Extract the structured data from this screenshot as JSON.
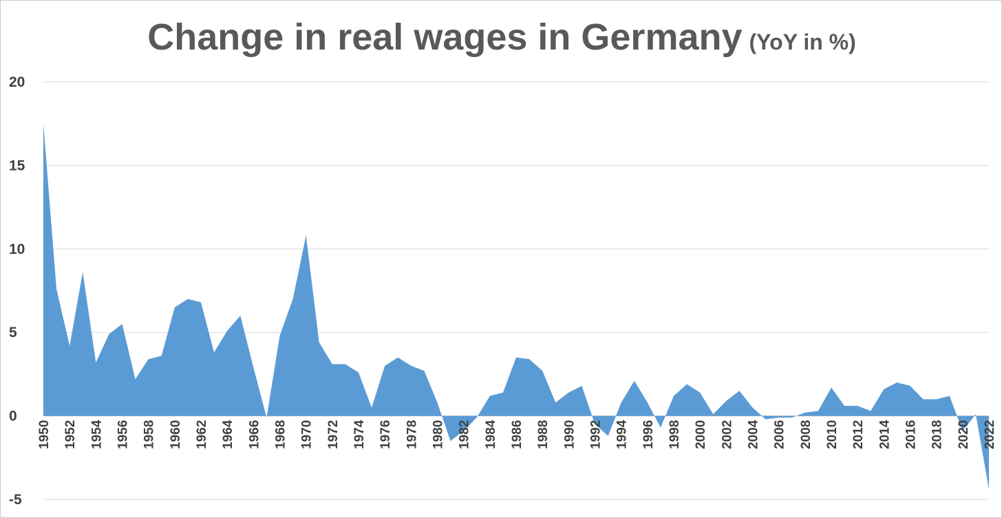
{
  "chart_data": {
    "type": "area",
    "title": "Change in real wages in Germany",
    "subtitle": "(YoY in %)",
    "xlabel": "",
    "ylabel": "",
    "ylim": [
      -5,
      20
    ],
    "yticks": [
      20,
      15,
      10,
      5,
      0,
      -5
    ],
    "grid": true,
    "legend": "none",
    "color": "#5b9bd5",
    "x": [
      1950,
      1951,
      1952,
      1953,
      1954,
      1955,
      1956,
      1957,
      1958,
      1959,
      1960,
      1961,
      1962,
      1963,
      1964,
      1965,
      1966,
      1967,
      1968,
      1969,
      1970,
      1971,
      1972,
      1973,
      1974,
      1975,
      1976,
      1977,
      1978,
      1979,
      1980,
      1981,
      1982,
      1983,
      1984,
      1985,
      1986,
      1987,
      1988,
      1989,
      1990,
      1991,
      1992,
      1993,
      1994,
      1995,
      1996,
      1997,
      1998,
      1999,
      2000,
      2001,
      2002,
      2003,
      2004,
      2005,
      2006,
      2007,
      2008,
      2009,
      2010,
      2011,
      2012,
      2013,
      2014,
      2015,
      2016,
      2017,
      2018,
      2019,
      2020,
      2021,
      2022
    ],
    "xticks": [
      1950,
      1952,
      1954,
      1956,
      1958,
      1960,
      1962,
      1964,
      1966,
      1968,
      1970,
      1972,
      1974,
      1976,
      1978,
      1980,
      1982,
      1984,
      1986,
      1988,
      1990,
      1992,
      1994,
      1996,
      1998,
      2000,
      2002,
      2004,
      2006,
      2008,
      2010,
      2012,
      2014,
      2016,
      2018,
      2020,
      2022
    ],
    "series": [
      {
        "values": [
          17.5,
          7.6,
          4.2,
          8.6,
          3.2,
          4.9,
          5.5,
          2.2,
          3.4,
          3.6,
          6.5,
          7.0,
          6.8,
          3.8,
          5.1,
          6.0,
          2.9,
          -0.1,
          4.8,
          7.0,
          10.8,
          4.4,
          3.1,
          3.1,
          2.6,
          0.5,
          3.0,
          3.5,
          3.0,
          2.7,
          0.8,
          -1.5,
          -0.9,
          -0.1,
          1.2,
          1.4,
          3.5,
          3.4,
          2.7,
          0.8,
          1.4,
          1.8,
          -0.5,
          -1.2,
          0.8,
          2.1,
          0.8,
          -0.7,
          1.2,
          1.9,
          1.4,
          0.1,
          0.9,
          1.5,
          0.5,
          -0.2,
          -0.1,
          -0.1,
          0.2,
          0.3,
          1.7,
          0.6,
          0.6,
          0.3,
          1.6,
          2.0,
          1.8,
          1.0,
          1.0,
          1.2,
          -0.9,
          0.1,
          -4.4
        ]
      }
    ]
  }
}
